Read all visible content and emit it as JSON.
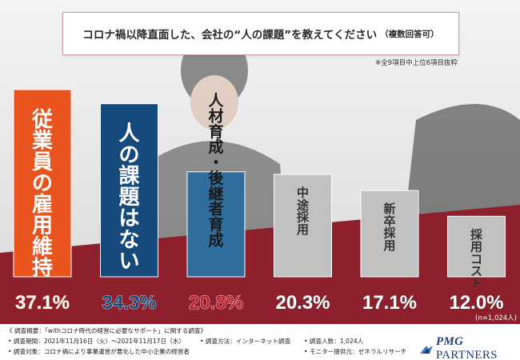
{
  "title": {
    "main": "コロナ禍以降直面した、会社の“人の課題”を教えてください",
    "paren": "（複数回答可）"
  },
  "note": "※全9項目中上位6項目抜粋",
  "colors": {
    "bar_orange": "#e9531d",
    "bar_navy": "#174a7c",
    "bar_blue": "#2e6d9c",
    "bar_gray": "#c1c1c1",
    "background_red": "#8e1f2c",
    "value_red": "#c01f2d",
    "brand_navy": "#1f3d72"
  },
  "chart_data": {
    "type": "bar",
    "categories": [
      "従業員の雇用維持",
      "人の課題はない",
      "人材育成・後継者育成",
      "中途採用",
      "新卒採用",
      "採用コスト"
    ],
    "values": [
      37.1,
      34.3,
      20.8,
      20.3,
      17.1,
      12.0
    ],
    "value_labels": [
      "37.1%",
      "34.3%",
      "20.8%",
      "20.3%",
      "17.1%",
      "12.0%"
    ],
    "n_label": "(n=1,024人)",
    "title": "コロナ禍以降直面した、会社の“人の課題”を教えてください（複数回答可）",
    "xlabel": "",
    "ylabel": ""
  },
  "footer": {
    "survey_overview": "《 調査概要：「withコロナ時代の経営に必要なサポート」に関する調査》",
    "period": "• 調査期間：2021年11月16日（火）～2021年11月17日（水）",
    "method": "• 調査方法：インターネット調査",
    "respondents": "• 調査人数：1,024人",
    "target": "• 調査対象：コロナ禍により事業運営が悪化した中小企業の経営者",
    "provider": "• モニター提供元：ゼネラルリサーチ"
  },
  "logo": {
    "brand": "PMG",
    "sub": " PARTNERS"
  }
}
